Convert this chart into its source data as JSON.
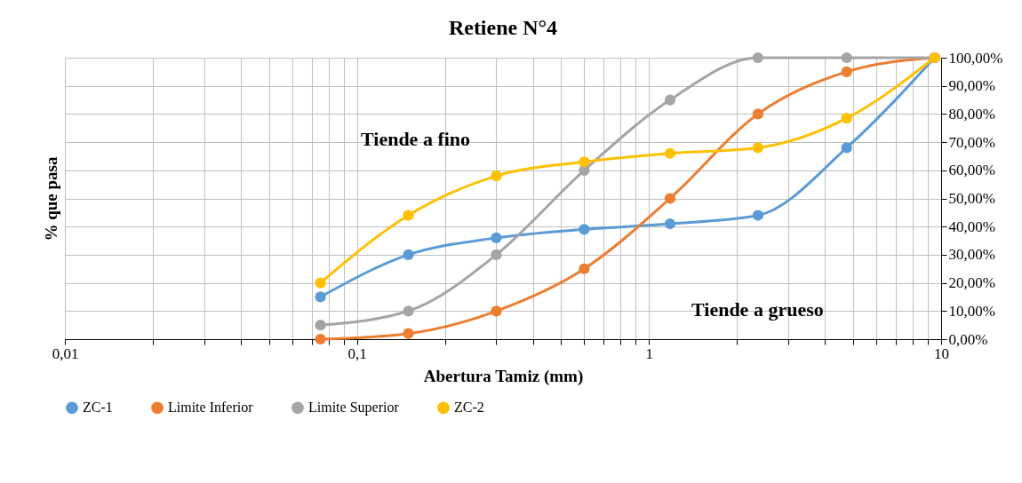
{
  "chart_data": {
    "type": "line",
    "title": "Retiene N°4",
    "xlabel": "Abertura Tamiz (mm)",
    "ylabel": "% que pasa",
    "log": "x",
    "grid": true,
    "legend": "bottom",
    "marker": "circle",
    "line_style": "solid",
    "x": [
      0.075,
      0.15,
      0.3,
      0.6,
      1.18,
      2.36,
      4.75,
      9.5
    ],
    "xlim": [
      0.01,
      10
    ],
    "xticks": [
      {
        "value": 0.01,
        "label": "0,01"
      },
      {
        "value": 0.02,
        "label": null
      },
      {
        "value": 0.03,
        "label": null
      },
      {
        "value": 0.04,
        "label": null
      },
      {
        "value": 0.05,
        "label": null
      },
      {
        "value": 0.06,
        "label": null
      },
      {
        "value": 0.07,
        "label": null
      },
      {
        "value": 0.08,
        "label": null
      },
      {
        "value": 0.09,
        "label": null
      },
      {
        "value": 0.1,
        "label": "0,1"
      },
      {
        "value": 0.2,
        "label": null
      },
      {
        "value": 0.3,
        "label": null
      },
      {
        "value": 0.4,
        "label": null
      },
      {
        "value": 0.5,
        "label": null
      },
      {
        "value": 0.6,
        "label": null
      },
      {
        "value": 0.7,
        "label": null
      },
      {
        "value": 0.8,
        "label": null
      },
      {
        "value": 0.9,
        "label": null
      },
      1,
      {
        "value": 2,
        "label": null
      },
      {
        "value": 3,
        "label": null
      },
      {
        "value": 4,
        "label": null
      },
      {
        "value": 5,
        "label": null
      },
      {
        "value": 6,
        "label": null
      },
      {
        "value": 7,
        "label": null
      },
      {
        "value": 8,
        "label": null
      },
      {
        "value": 9,
        "label": null
      },
      10
    ],
    "ylim": [
      0,
      100
    ],
    "yticks": [
      {
        "value": 0,
        "label": "0,00%"
      },
      {
        "value": 10,
        "label": "10,00%"
      },
      {
        "value": 20,
        "label": "20,00%"
      },
      {
        "value": 30,
        "label": "30,00%"
      },
      {
        "value": 40,
        "label": "40,00%"
      },
      {
        "value": 50,
        "label": "50,00%"
      },
      {
        "value": 60,
        "label": "60,00%"
      },
      {
        "value": 70,
        "label": "70,00%"
      },
      {
        "value": 80,
        "label": "80,00%"
      },
      {
        "value": 90,
        "label": "90,00%"
      },
      {
        "value": 100,
        "label": "100,00%"
      }
    ],
    "series": [
      {
        "name": "ZC-1",
        "color": "#5b9bd5",
        "values": [
          15,
          30,
          36,
          39,
          41,
          44,
          68,
          100
        ]
      },
      {
        "name": "Limite Inferior",
        "color": "#ed7d31",
        "values": [
          0,
          2,
          10,
          25,
          50,
          80,
          95,
          100
        ]
      },
      {
        "name": "Limite Superior",
        "color": "#a5a5a5",
        "values": [
          5,
          10,
          30,
          60,
          85,
          100,
          100,
          100
        ]
      },
      {
        "name": "ZC-2",
        "color": "#ffc000",
        "values": [
          20,
          44,
          58,
          63,
          66,
          68,
          78.5,
          100
        ]
      }
    ],
    "annotations": [
      "Tiende a fino",
      "Tiende a grueso"
    ]
  }
}
